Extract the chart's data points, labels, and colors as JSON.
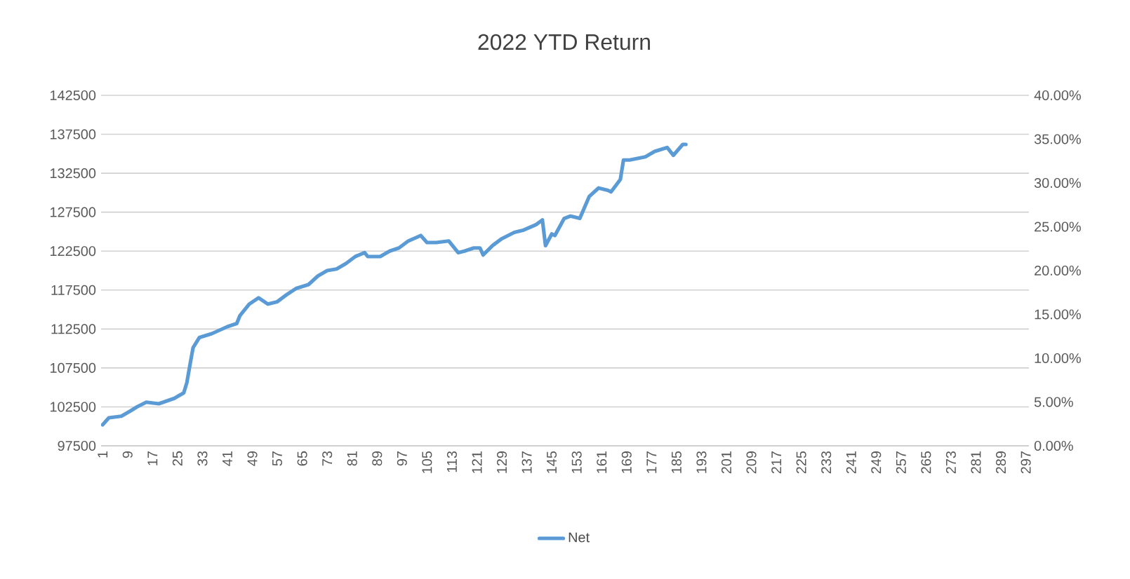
{
  "chart_data": {
    "type": "line",
    "title": "2022 YTD Return",
    "xlim": [
      0.5,
      298
    ],
    "xticks": [
      1,
      9,
      17,
      25,
      33,
      41,
      49,
      57,
      65,
      73,
      81,
      89,
      97,
      105,
      113,
      121,
      129,
      137,
      145,
      153,
      161,
      169,
      177,
      185,
      193,
      201,
      209,
      217,
      225,
      233,
      241,
      249,
      257,
      265,
      273,
      281,
      289,
      297
    ],
    "ylim": [
      97500,
      142500
    ],
    "yticks": [
      97500,
      102500,
      107500,
      112500,
      117500,
      122500,
      127500,
      132500,
      137500,
      142500
    ],
    "y2lim": [
      0,
      40
    ],
    "y2ticks": [
      {
        "value": 0,
        "label": "0.00%"
      },
      {
        "value": 5,
        "label": "5.00%"
      },
      {
        "value": 10,
        "label": "10.00%"
      },
      {
        "value": 15,
        "label": "15.00%"
      },
      {
        "value": 20,
        "label": "20.00%"
      },
      {
        "value": 25,
        "label": "25.00%"
      },
      {
        "value": 30,
        "label": "30.00%"
      },
      {
        "value": 35,
        "label": "35.00%"
      },
      {
        "value": 40,
        "label": "40.00%"
      }
    ],
    "grid": "y",
    "legend": "bottom",
    "marker": "none",
    "line_style": "solid",
    "series": [
      {
        "name": "Net",
        "color": "#5b9bd5",
        "x": [
          1,
          3,
          7,
          10,
          12,
          15,
          19,
          24,
          27,
          28,
          29,
          30,
          32,
          36,
          41,
          44,
          45,
          48,
          51,
          54,
          57,
          60,
          63,
          67,
          70,
          73,
          76,
          79,
          82,
          85,
          86,
          90,
          93,
          96,
          99,
          103,
          105,
          108,
          112,
          115,
          117,
          120,
          122,
          123,
          126,
          129,
          133,
          136,
          140,
          142,
          143,
          145,
          146,
          149,
          151,
          154,
          157,
          160,
          163,
          164,
          167,
          168,
          170,
          175,
          178,
          182,
          184,
          187,
          188
        ],
        "values": [
          100200,
          101100,
          101300,
          102000,
          102500,
          103100,
          102900,
          103600,
          104300,
          105600,
          107900,
          110100,
          111400,
          111900,
          112800,
          113200,
          114200,
          115700,
          116500,
          115700,
          116000,
          116900,
          117700,
          118200,
          119300,
          120000,
          120200,
          120900,
          121800,
          122300,
          121800,
          121800,
          122500,
          122900,
          123800,
          124500,
          123600,
          123600,
          123800,
          122300,
          122500,
          122900,
          122900,
          122000,
          123200,
          124100,
          124900,
          125200,
          125900,
          126500,
          123200,
          124700,
          124500,
          126700,
          127000,
          126700,
          129500,
          130600,
          130300,
          130100,
          131700,
          134200,
          134200,
          134600,
          135300,
          135800,
          134800,
          136200,
          136200
        ]
      }
    ]
  }
}
